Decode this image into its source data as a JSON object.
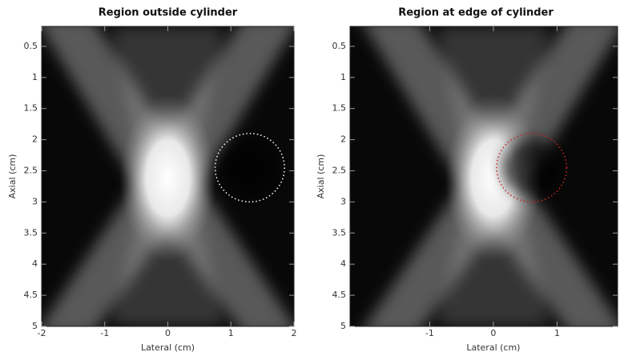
{
  "chart_data": [
    {
      "type": "image",
      "title": "Region outside cylinder",
      "x_label": "Lateral (cm)",
      "y_label": "Axial (cm)",
      "xlim": [
        -2,
        2
      ],
      "ylim": [
        5,
        0.18
      ],
      "xticks": [
        -2,
        -1,
        0,
        1,
        2
      ],
      "yticks": [
        0.5,
        1,
        1.5,
        2,
        2.5,
        3,
        3.5,
        4,
        4.5,
        5
      ],
      "circle": {
        "cx": 1.3,
        "cy": 2.45,
        "r": 0.55,
        "color": "#ffffff"
      }
    },
    {
      "type": "image",
      "title": "Region at edge of cylinder",
      "x_label": "Lateral (cm)",
      "y_label": "Axial (cm)",
      "xlim": [
        -2.25,
        1.95
      ],
      "ylim": [
        5,
        0.18
      ],
      "xticks": [
        -1,
        0,
        1
      ],
      "yticks": [
        0.5,
        1,
        1.5,
        2,
        2.5,
        3,
        3.5,
        4,
        4.5,
        5
      ],
      "circle": {
        "cx": 0.6,
        "cy": 2.45,
        "r": 0.55,
        "color": "#cc2222"
      }
    }
  ]
}
